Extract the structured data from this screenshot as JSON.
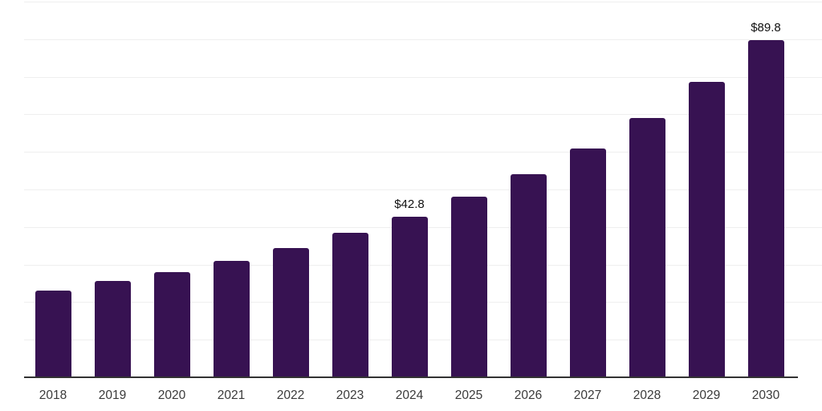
{
  "chart_data": {
    "type": "bar",
    "categories": [
      "2018",
      "2019",
      "2020",
      "2021",
      "2022",
      "2023",
      "2024",
      "2025",
      "2026",
      "2027",
      "2028",
      "2029",
      "2030"
    ],
    "values": [
      23.1,
      25.7,
      27.9,
      30.9,
      34.3,
      38.4,
      42.8,
      48.1,
      54.0,
      60.9,
      69.1,
      78.6,
      89.8
    ],
    "data_labels": [
      {
        "category": "2024",
        "text": "$42.8"
      },
      {
        "category": "2030",
        "text": "$89.8"
      }
    ],
    "title": "",
    "xlabel": "",
    "ylabel": "",
    "ylim": [
      0,
      100
    ],
    "gridline_step": 10,
    "grid": "horizontal",
    "legend_position": "none",
    "y_tick_labels_visible": false,
    "colors": {
      "bar_fill": "#371252",
      "gridline": "#efefef",
      "axis_line": "#333333",
      "tick_label": "#3a3a3a",
      "data_label": "#111111",
      "background": "#ffffff"
    }
  }
}
